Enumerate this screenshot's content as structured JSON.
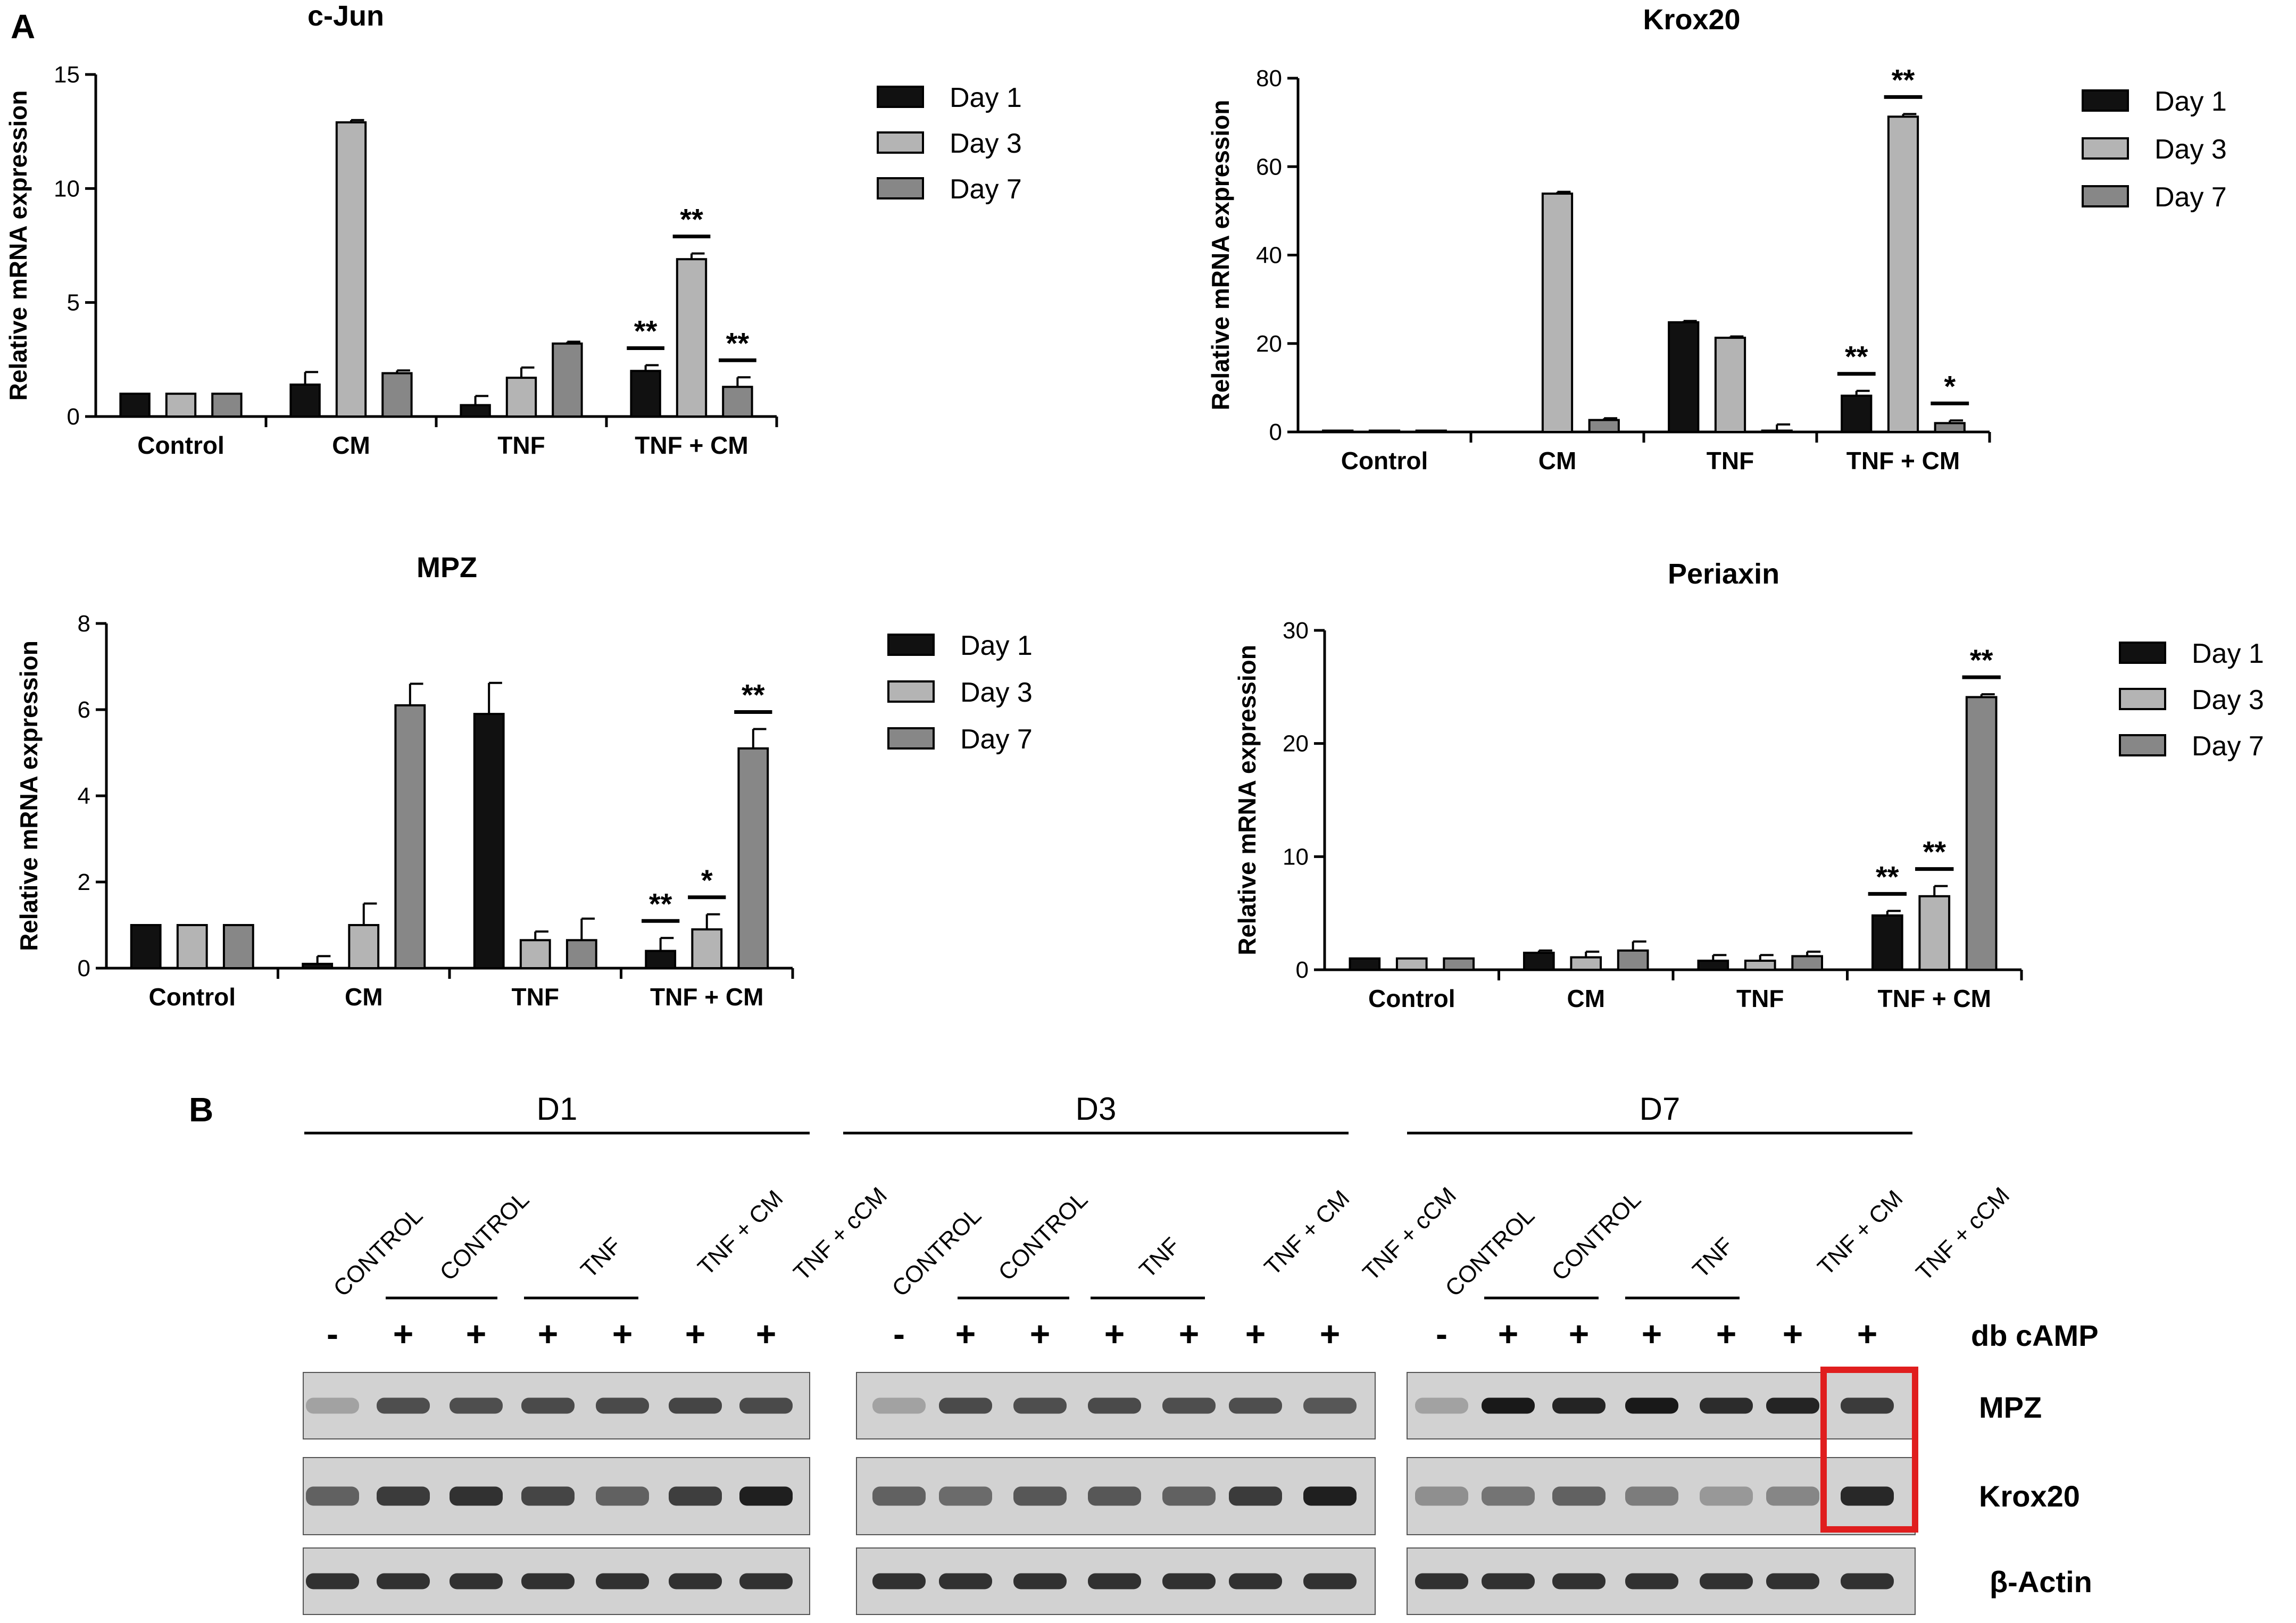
{
  "panel_labels": {
    "a": "A",
    "b": "B"
  },
  "legend_labels": [
    "Day 1",
    "Day 3",
    "Day 7"
  ],
  "colors": {
    "day1": "#111111",
    "day3": "#b4b4b4",
    "day7": "#878787",
    "highlight": "#e01e1e",
    "band": "#151515"
  },
  "chart_data": [
    {
      "type": "bar",
      "title": "c-Jun",
      "ylabel": "Relative mRNA expression",
      "xlabel": "",
      "categories": [
        "Control",
        "CM",
        "TNF",
        "TNF + CM"
      ],
      "ylim": [
        0,
        15
      ],
      "yticks": [
        0,
        5,
        10,
        15
      ],
      "series": [
        {
          "name": "Day 1",
          "values": [
            1.0,
            1.4,
            0.5,
            2.0
          ],
          "errors": [
            0,
            0.55,
            0.4,
            0.25
          ]
        },
        {
          "name": "Day 3",
          "values": [
            1.0,
            12.9,
            1.7,
            6.9
          ],
          "errors": [
            0,
            0.1,
            0.45,
            0.25
          ]
        },
        {
          "name": "Day 7",
          "values": [
            1.0,
            1.9,
            3.2,
            1.3
          ],
          "errors": [
            0,
            0.12,
            0.08,
            0.42
          ]
        }
      ],
      "significance": [
        {
          "category": 3,
          "series": 0,
          "label": "**"
        },
        {
          "category": 3,
          "series": 1,
          "label": "**"
        },
        {
          "category": 3,
          "series": 2,
          "label": "**"
        }
      ]
    },
    {
      "type": "bar",
      "title": "Krox20",
      "ylabel": "Relative mRNA expression",
      "xlabel": "",
      "categories": [
        "Control",
        "CM",
        "TNF",
        "TNF + CM"
      ],
      "ylim": [
        0,
        80
      ],
      "yticks": [
        0,
        20,
        40,
        60,
        80
      ],
      "series": [
        {
          "name": "Day 1",
          "values": [
            0.3,
            0,
            24.8,
            8.2
          ],
          "errors": [
            0,
            0,
            0.3,
            1.1
          ]
        },
        {
          "name": "Day 3",
          "values": [
            0.3,
            53.9,
            21.3,
            71.3
          ],
          "errors": [
            0,
            0.4,
            0.3,
            0.6
          ]
        },
        {
          "name": "Day 7",
          "values": [
            0.3,
            2.7,
            0.3,
            2.0
          ],
          "errors": [
            0,
            0.4,
            1.4,
            0.6
          ]
        }
      ],
      "significance": [
        {
          "category": 3,
          "series": 0,
          "label": "**"
        },
        {
          "category": 3,
          "series": 1,
          "label": "**"
        },
        {
          "category": 3,
          "series": 2,
          "label": "*"
        }
      ]
    },
    {
      "type": "bar",
      "title": "MPZ",
      "ylabel": "Relative mRNA expression",
      "xlabel": "",
      "categories": [
        "Control",
        "CM",
        "TNF",
        "TNF + CM"
      ],
      "ylim": [
        0,
        8
      ],
      "yticks": [
        0,
        2,
        4,
        6,
        8
      ],
      "series": [
        {
          "name": "Day 1",
          "values": [
            1.0,
            0.1,
            5.9,
            0.4
          ],
          "errors": [
            0,
            0.18,
            0.72,
            0.3
          ]
        },
        {
          "name": "Day 3",
          "values": [
            1.0,
            1.0,
            0.65,
            0.9
          ],
          "errors": [
            0,
            0.5,
            0.2,
            0.35
          ]
        },
        {
          "name": "Day 7",
          "values": [
            1.0,
            6.1,
            0.65,
            5.1
          ],
          "errors": [
            0,
            0.5,
            0.5,
            0.45
          ]
        }
      ],
      "significance": [
        {
          "category": 3,
          "series": 0,
          "label": "**"
        },
        {
          "category": 3,
          "series": 1,
          "label": "*"
        },
        {
          "category": 3,
          "series": 2,
          "label": "**"
        }
      ]
    },
    {
      "type": "bar",
      "title": "Periaxin",
      "ylabel": "Relative mRNA expression",
      "xlabel": "",
      "categories": [
        "Control",
        "CM",
        "TNF",
        "TNF + CM"
      ],
      "ylim": [
        0,
        30
      ],
      "yticks": [
        0,
        10,
        20,
        30
      ],
      "series": [
        {
          "name": "Day 1",
          "values": [
            1.0,
            1.5,
            0.8,
            4.8
          ],
          "errors": [
            0,
            0.2,
            0.5,
            0.4
          ]
        },
        {
          "name": "Day 3",
          "values": [
            1.0,
            1.1,
            0.8,
            6.5
          ],
          "errors": [
            0,
            0.5,
            0.5,
            0.9
          ]
        },
        {
          "name": "Day 7",
          "values": [
            1.0,
            1.7,
            1.2,
            24.1
          ],
          "errors": [
            0,
            0.8,
            0.4,
            0.25
          ]
        }
      ],
      "significance": [
        {
          "category": 3,
          "series": 0,
          "label": "**"
        },
        {
          "category": 3,
          "series": 1,
          "label": "**"
        },
        {
          "category": 3,
          "series": 2,
          "label": "**"
        }
      ]
    }
  ],
  "western_blot": {
    "groups": [
      {
        "label": "D1",
        "lanes": [
          "CONTROL",
          "CONTROL",
          "TNF",
          "TNF + CM",
          "TNF + cCM"
        ],
        "db_camp": [
          "-",
          "+",
          "+",
          "+",
          "+",
          "+",
          "+"
        ],
        "mpz": [
          0.25,
          0.7,
          0.7,
          0.72,
          0.72,
          0.75,
          0.72
        ],
        "krox20": [
          0.6,
          0.8,
          0.85,
          0.75,
          0.6,
          0.78,
          0.95
        ],
        "actin": [
          0.85,
          0.85,
          0.85,
          0.85,
          0.85,
          0.85,
          0.85
        ]
      },
      {
        "label": "D3",
        "lanes": [
          "CONTROL",
          "CONTROL",
          "TNF",
          "TNF + CM",
          "TNF + cCM"
        ],
        "db_camp": [
          "-",
          "+",
          "+",
          "+",
          "+",
          "+",
          "+"
        ],
        "mpz": [
          0.25,
          0.72,
          0.7,
          0.72,
          0.7,
          0.7,
          0.65
        ],
        "krox20": [
          0.6,
          0.55,
          0.65,
          0.65,
          0.6,
          0.8,
          0.95
        ],
        "actin": [
          0.85,
          0.85,
          0.85,
          0.85,
          0.85,
          0.85,
          0.85
        ]
      },
      {
        "label": "D7",
        "lanes": [
          "CONTROL",
          "CONTROL",
          "TNF",
          "TNF + CM",
          "TNF + cCM"
        ],
        "db_camp": [
          "-",
          "+",
          "+",
          "+",
          "+",
          "+",
          "+"
        ],
        "mpz": [
          0.25,
          0.98,
          0.92,
          0.98,
          0.88,
          0.92,
          0.8
        ],
        "krox20": [
          0.35,
          0.5,
          0.6,
          0.45,
          0.3,
          0.4,
          0.9
        ],
        "actin": [
          0.85,
          0.85,
          0.85,
          0.85,
          0.85,
          0.85,
          0.85
        ]
      }
    ],
    "row_labels": {
      "camp": "db cAMP",
      "mpz": "MPZ",
      "krox20": "Krox20",
      "actin": "β-Actin"
    }
  }
}
